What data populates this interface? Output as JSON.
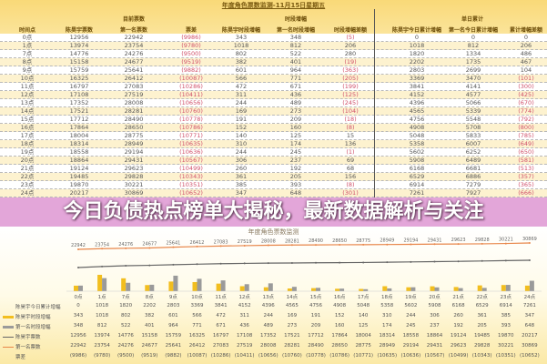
{
  "title": "年度角色票数监测-11月15日星期五",
  "headline": "今日负债热点榜单大揭秘，最新数据解析与关注",
  "groups": {
    "current": "目前票数",
    "period": "时段增幅",
    "daily": "单日累计"
  },
  "columns": [
    "时间点",
    "陈昊宇票数",
    "第一名票数",
    "票差",
    "陈昊宇时段增幅",
    "第一名时段增幅",
    "时段增幅差额",
    "陈昊宇今日累计增幅",
    "第一名今日累计增幅",
    "累计增幅差额"
  ],
  "rows": [
    [
      "0点",
      "12956",
      "22942",
      "(9986)",
      "343",
      "348",
      "(5)",
      "0",
      "0",
      "0"
    ],
    [
      "1点",
      "13974",
      "23754",
      "(9780)",
      "1018",
      "812",
      "206",
      "1018",
      "812",
      "206"
    ],
    [
      "7点",
      "14776",
      "24276",
      "(9500)",
      "802",
      "522",
      "280",
      "1820",
      "1334",
      "486"
    ],
    [
      "8点",
      "15158",
      "24677",
      "(9519)",
      "382",
      "401",
      "(19)",
      "2202",
      "1735",
      "467"
    ],
    [
      "9点",
      "15759",
      "25641",
      "(9882)",
      "601",
      "964",
      "(363)",
      "2803",
      "2699",
      "104"
    ],
    [
      "10点",
      "16325",
      "26412",
      "(10087)",
      "566",
      "771",
      "(205)",
      "3369",
      "3470",
      "(101)"
    ],
    [
      "11点",
      "16797",
      "27083",
      "(10286)",
      "472",
      "671",
      "(199)",
      "3841",
      "4141",
      "(300)"
    ],
    [
      "12点",
      "17108",
      "27519",
      "(10411)",
      "311",
      "436",
      "(125)",
      "4152",
      "4577",
      "(425)"
    ],
    [
      "13点",
      "17352",
      "28008",
      "(10656)",
      "244",
      "489",
      "(245)",
      "4396",
      "5066",
      "(670)"
    ],
    [
      "14点",
      "17521",
      "28281",
      "(10760)",
      "169",
      "273",
      "(104)",
      "4565",
      "5339",
      "(774)"
    ],
    [
      "15点",
      "17712",
      "28490",
      "(10778)",
      "191",
      "209",
      "(18)",
      "4756",
      "5548",
      "(792)"
    ],
    [
      "16点",
      "17864",
      "28650",
      "(10786)",
      "152",
      "160",
      "(8)",
      "4908",
      "5708",
      "(800)"
    ],
    [
      "17点",
      "18004",
      "28775",
      "(10771)",
      "140",
      "125",
      "15",
      "5048",
      "5833",
      "(785)"
    ],
    [
      "18点",
      "18314",
      "28949",
      "(10635)",
      "310",
      "174",
      "136",
      "5358",
      "6007",
      "(649)"
    ],
    [
      "19点",
      "18558",
      "29194",
      "(10636)",
      "244",
      "245",
      "(1)",
      "5602",
      "6252",
      "(650)"
    ],
    [
      "20点",
      "18864",
      "29431",
      "(10567)",
      "306",
      "237",
      "69",
      "5908",
      "6489",
      "(581)"
    ],
    [
      "21点",
      "19124",
      "29623",
      "(10499)",
      "260",
      "192",
      "68",
      "6168",
      "6681",
      "(513)"
    ],
    [
      "22点",
      "19485",
      "29828",
      "(10343)",
      "361",
      "205",
      "156",
      "6529",
      "6886",
      "(357)"
    ],
    [
      "23点",
      "19870",
      "30221",
      "(10351)",
      "385",
      "393",
      "(8)",
      "6914",
      "7279",
      "(365)"
    ],
    [
      "24点",
      "20217",
      "30869",
      "(10652)",
      "347",
      "648",
      "(301)",
      "7261",
      "7927",
      "(666)"
    ]
  ],
  "chart_data": {
    "type": "combo",
    "title": "年度角色票数监测",
    "categories": [
      "0点",
      "1点",
      "7点",
      "8点",
      "9点",
      "10点",
      "11点",
      "12点",
      "13点",
      "14点",
      "15点",
      "16点",
      "17点",
      "18点",
      "19点",
      "20点",
      "21点",
      "22点",
      "23点",
      "24点"
    ],
    "series": [
      {
        "name": "陈昊宇今日累计增幅",
        "kind": "table",
        "values": [
          0,
          1018,
          1820,
          2202,
          2803,
          3369,
          3841,
          4152,
          4396,
          4565,
          4756,
          4908,
          5048,
          5358,
          5602,
          5908,
          6168,
          6529,
          6914,
          7261
        ]
      },
      {
        "name": "陈昊宇时段增幅",
        "kind": "bar",
        "color": "#f2be1e",
        "values": [
          343,
          1018,
          802,
          382,
          601,
          566,
          472,
          311,
          244,
          169,
          191,
          152,
          140,
          310,
          244,
          306,
          260,
          361,
          385,
          347
        ]
      },
      {
        "name": "第一名时段增幅",
        "kind": "bar",
        "color": "#9a9a9a",
        "values": [
          348,
          812,
          522,
          401,
          964,
          771,
          671,
          436,
          489,
          273,
          209,
          160,
          125,
          174,
          245,
          237,
          192,
          205,
          393,
          648
        ]
      },
      {
        "name": "陈昊宇票数",
        "kind": "line",
        "color": "#666666",
        "values": [
          12956,
          13974,
          14776,
          15158,
          15759,
          16325,
          16797,
          17108,
          17352,
          17521,
          17712,
          17864,
          18004,
          18314,
          18558,
          18864,
          19124,
          19485,
          19870,
          20217
        ]
      },
      {
        "name": "第一名票数",
        "kind": "line",
        "color": "#e8864a",
        "values": [
          22942,
          23754,
          24276,
          24677,
          25641,
          26412,
          27083,
          27519,
          28008,
          28281,
          28490,
          28650,
          28775,
          28949,
          29194,
          29431,
          29623,
          29828,
          30221,
          30869
        ]
      },
      {
        "name": "票差",
        "kind": "table",
        "values": [
          "(9986)",
          "(9780)",
          "(9500)",
          "(9519)",
          "(9882)",
          "(10087)",
          "(10286)",
          "(10411)",
          "(10656)",
          "(10760)",
          "(10778)",
          "(10786)",
          "(10771)",
          "(10635)",
          "(10636)",
          "(10567)",
          "(10499)",
          "(10343)",
          "(10351)",
          "(10652)"
        ]
      }
    ]
  }
}
